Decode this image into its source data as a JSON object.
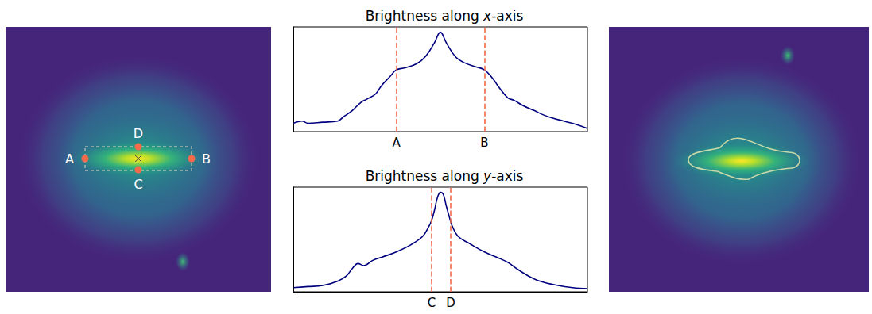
{
  "chart_data": [
    {
      "type": "line",
      "title": "Brightness along x-axis",
      "x": [
        0,
        3,
        5,
        10,
        15,
        17,
        20,
        23,
        25,
        28,
        30,
        33,
        35,
        38,
        42,
        45,
        48,
        50,
        52,
        55,
        58,
        62,
        65,
        68,
        70,
        73,
        75,
        78,
        82,
        85,
        88,
        92,
        96,
        100
      ],
      "values": [
        0.08,
        0.1,
        0.08,
        0.09,
        0.1,
        0.14,
        0.2,
        0.28,
        0.31,
        0.36,
        0.44,
        0.53,
        0.59,
        0.61,
        0.65,
        0.72,
        0.85,
        0.95,
        0.85,
        0.72,
        0.66,
        0.62,
        0.59,
        0.5,
        0.42,
        0.32,
        0.3,
        0.25,
        0.2,
        0.16,
        0.13,
        0.1,
        0.07,
        0.03
      ],
      "xlim": [
        0,
        100
      ],
      "ylim": [
        0,
        1
      ],
      "color": "#00007f",
      "grid": false,
      "tick_labels": false,
      "markers": [
        {
          "value": 35,
          "label": "A"
        },
        {
          "value": 65,
          "label": "B"
        }
      ]
    },
    {
      "type": "line",
      "title": "Brightness along y-axis",
      "x": [
        0,
        5,
        10,
        15,
        18,
        20,
        22,
        24,
        27,
        30,
        35,
        40,
        44,
        46,
        47,
        48,
        49,
        50,
        51,
        52,
        53,
        54,
        56,
        60,
        65,
        70,
        73,
        76,
        80,
        84,
        90,
        95,
        100
      ],
      "values": [
        0.04,
        0.05,
        0.06,
        0.1,
        0.15,
        0.22,
        0.27,
        0.25,
        0.3,
        0.33,
        0.38,
        0.45,
        0.53,
        0.62,
        0.68,
        0.78,
        0.9,
        0.95,
        0.93,
        0.82,
        0.72,
        0.63,
        0.53,
        0.46,
        0.38,
        0.32,
        0.28,
        0.22,
        0.15,
        0.1,
        0.06,
        0.04,
        0.03
      ],
      "xlim": [
        0,
        100
      ],
      "ylim": [
        0,
        1
      ],
      "color": "#00007f",
      "grid": false,
      "tick_labels": false,
      "markers": [
        {
          "value": 47,
          "label": "C"
        },
        {
          "value": 53.5,
          "label": "D"
        }
      ]
    }
  ]
}
